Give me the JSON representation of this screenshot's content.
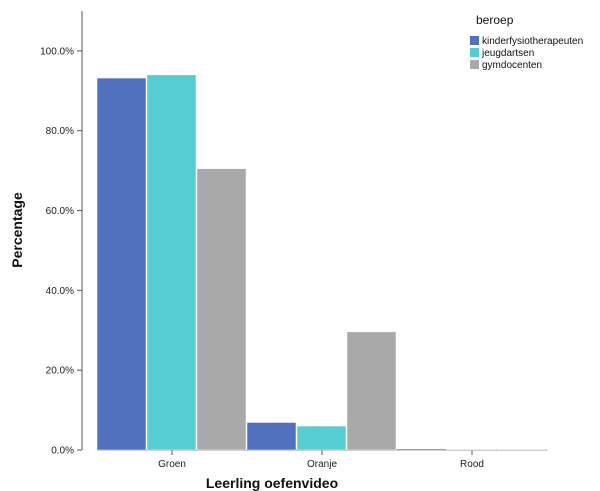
{
  "chart_data": {
    "type": "bar",
    "title": "",
    "xlabel": "Leerling oefenvideo",
    "ylabel": "Percentage",
    "categories": [
      "Groen",
      "Oranje",
      "Rood"
    ],
    "ylim": [
      0,
      110
    ],
    "yticks": [
      {
        "value": 0,
        "label": "0.0%"
      },
      {
        "value": 20,
        "label": "20.0%"
      },
      {
        "value": 40,
        "label": "40.0%"
      },
      {
        "value": 60,
        "label": "60.0%"
      },
      {
        "value": 80,
        "label": "80.0%"
      },
      {
        "value": 100,
        "label": "100.0%"
      }
    ],
    "legend": {
      "title": "beroep",
      "position": "top-right"
    },
    "grid": false,
    "series": [
      {
        "name": "kinderfysiotherapeuten",
        "color": "#5170be",
        "values": [
          93.2,
          6.9,
          0.3
        ]
      },
      {
        "name": "jeugdartsen",
        "color": "#56cdd1",
        "values": [
          94.0,
          6.0,
          0.2
        ]
      },
      {
        "name": "gymdocenten",
        "color": "#a9a9a9",
        "values": [
          70.5,
          29.6,
          0.2
        ]
      }
    ]
  }
}
